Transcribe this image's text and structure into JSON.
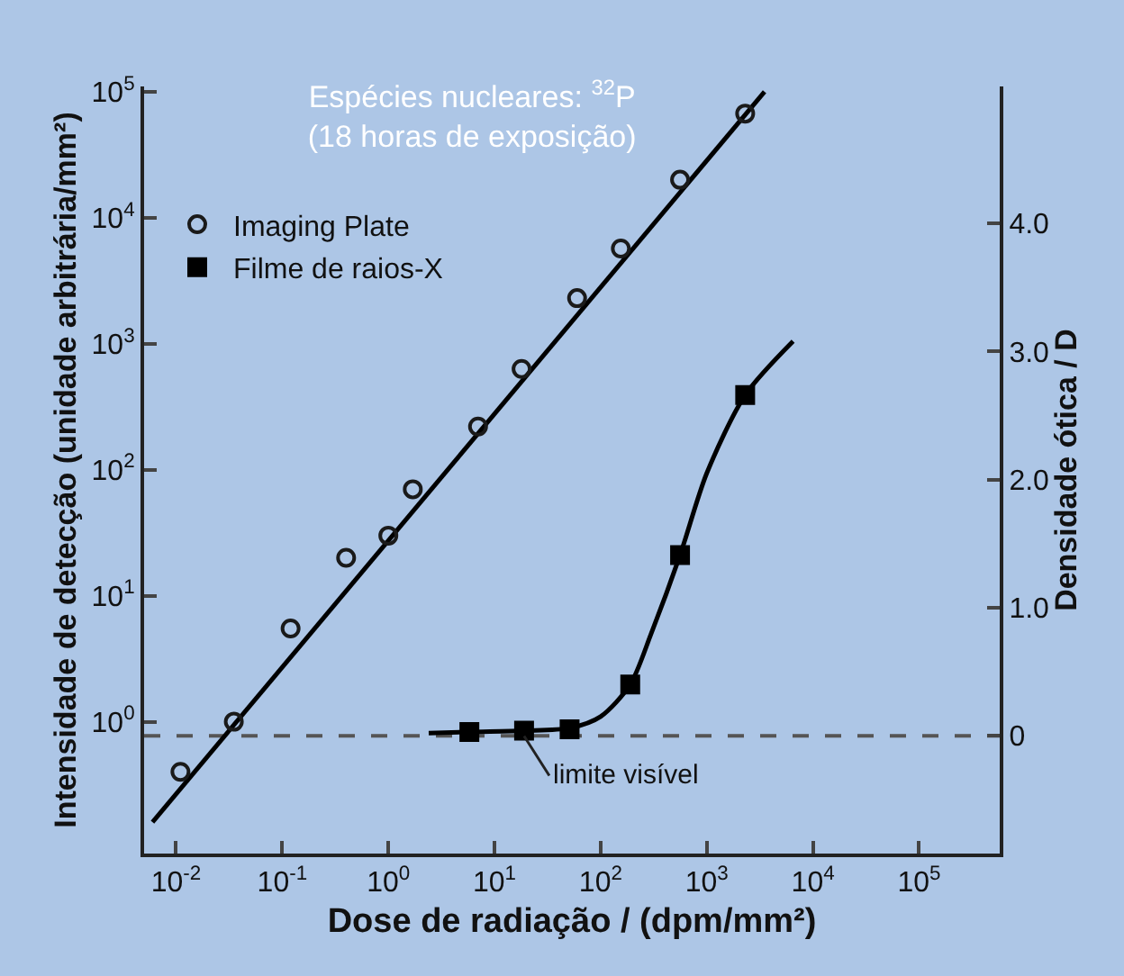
{
  "chart_data": {
    "type": "scatter",
    "title": "Espécies nucleares: $^{32}$P\n(18 horas de exposição)",
    "xlabel": "Dose de radiação / (dpm/mm²)",
    "ylabel": "Intensidade de detecção (unidade arbitrária/mm²)",
    "y2label": "Densidade ótica / D",
    "log": "xy",
    "grid": false,
    "legend": "top left",
    "xlim": [
      0.005,
      575000
    ],
    "xticks": [
      {
        "value": 0.01,
        "label": "10$^{-2}$"
      },
      {
        "value": 0.1,
        "label": "10$^{-1}$"
      },
      {
        "value": 1,
        "label": "10$^{0}$"
      },
      {
        "value": 10,
        "label": "10$^{1}$"
      },
      {
        "value": 100,
        "label": "10$^{2}$"
      },
      {
        "value": 1000,
        "label": "10$^{3}$"
      },
      {
        "value": 10000,
        "label": "10$^{4}$"
      },
      {
        "value": 100000,
        "label": "10$^{5}$"
      }
    ],
    "ylim": [
      0.09,
      110000
    ],
    "yticks": [
      {
        "value": 1,
        "label": "10$^{0}$"
      },
      {
        "value": 10,
        "label": "10$^{1}$"
      },
      {
        "value": 100,
        "label": "10$^{2}$"
      },
      {
        "value": 1000,
        "label": "10$^{3}$"
      },
      {
        "value": 10000,
        "label": "10$^{4}$"
      },
      {
        "value": 100000,
        "label": "10$^{5}$"
      }
    ],
    "y2lim": [
      -0.92,
      5.07
    ],
    "y2ticks": [
      0,
      {
        "value": 1,
        "label": "1.0"
      },
      {
        "value": 2,
        "label": "2.0"
      },
      {
        "value": 3,
        "label": "3.0"
      },
      {
        "value": 4,
        "label": "4.0"
      }
    ],
    "series": [
      {
        "name": "Imaging Plate",
        "marker": "circle",
        "color": "#1a1a1a",
        "x": [
          0.011,
          0.035,
          0.12,
          0.4,
          1.0,
          1.7,
          7,
          18,
          60,
          155,
          560,
          2300
        ],
        "values": [
          0.4,
          1.0,
          5.5,
          20,
          30,
          70,
          220,
          630,
          2300,
          5700,
          20000,
          67000
        ]
      },
      {
        "type": "line",
        "color": "#000000",
        "x": [
          0.006,
          3500
        ],
        "values": [
          0.16,
          100000
        ]
      },
      {
        "name": "Filme de raios-X",
        "marker": "square",
        "axis": "y2",
        "color": "#000000",
        "x": [
          5.8,
          19,
          51,
          190,
          560,
          2300
        ],
        "values": [
          0.03,
          0.04,
          0.05,
          0.4,
          1.41,
          2.66
        ]
      },
      {
        "type": "line",
        "axis": "y2",
        "color": "#000000",
        "x": [
          2.4,
          5.8,
          19,
          51,
          100,
          190,
          300,
          560,
          1000,
          2300,
          6500
        ],
        "values": [
          0.02,
          0.03,
          0.04,
          0.06,
          0.15,
          0.4,
          0.8,
          1.41,
          2.05,
          2.66,
          3.08
        ]
      }
    ],
    "ref_lines": [
      {
        "axis": "y2",
        "value": 0,
        "line_style": "dashed",
        "color": "#555555"
      }
    ],
    "annotations": [
      {
        "text": "limite visível",
        "x": 19,
        "y": 0.77
      }
    ]
  }
}
